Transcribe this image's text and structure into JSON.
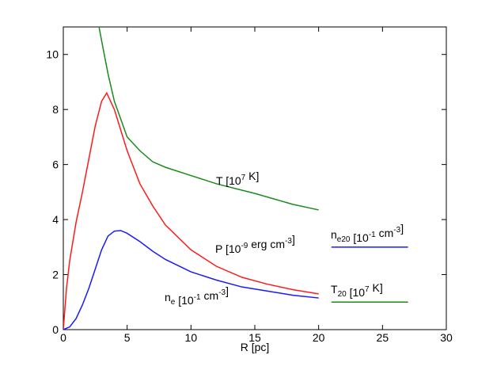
{
  "chart_data": {
    "type": "line",
    "xlabel": "R [pc]",
    "xlim": [
      0,
      30
    ],
    "xticks": [
      0,
      5,
      10,
      15,
      20,
      25,
      30
    ],
    "ylim": [
      0,
      11
    ],
    "yticks": [
      0,
      2,
      4,
      6,
      8,
      10
    ],
    "series": [
      {
        "label": [
          "T [10",
          {
            "sup": "7"
          },
          " K]"
        ],
        "color": "#1a8a1a",
        "x": [
          2.8,
          3,
          3.5,
          4,
          5,
          6,
          7,
          8,
          10,
          12,
          15,
          18,
          20
        ],
        "values": [
          11,
          10.5,
          9.3,
          8.3,
          7.0,
          6.5,
          6.1,
          5.9,
          5.6,
          5.3,
          4.95,
          4.55,
          4.35
        ]
      },
      {
        "label": [
          "P [10",
          {
            "sup": "-9"
          },
          " erg cm",
          {
            "sup": "-3"
          },
          "]"
        ],
        "color": "#ff1a1a",
        "x": [
          0,
          0.25,
          0.5,
          1,
          1.5,
          2,
          2.5,
          3,
          3.4,
          4,
          5,
          6,
          7,
          8,
          10,
          12,
          14,
          16,
          18,
          20
        ],
        "values": [
          0,
          1.5,
          2.5,
          3.9,
          5.0,
          6.2,
          7.4,
          8.3,
          8.6,
          8.0,
          6.5,
          5.3,
          4.5,
          3.8,
          2.9,
          2.3,
          1.9,
          1.65,
          1.45,
          1.3
        ]
      },
      {
        "label": [
          "n",
          {
            "sub": "e"
          },
          " [10",
          {
            "sup": "-1"
          },
          " cm",
          {
            "sup": "-3"
          },
          "]"
        ],
        "color": "#1a1aff",
        "x": [
          0,
          0.5,
          1,
          1.5,
          2,
          2.5,
          3,
          3.5,
          4,
          4.5,
          5,
          6,
          7,
          8,
          10,
          12,
          14,
          16,
          18,
          20
        ],
        "values": [
          0,
          0.1,
          0.4,
          0.9,
          1.5,
          2.2,
          2.9,
          3.4,
          3.58,
          3.6,
          3.5,
          3.2,
          2.85,
          2.55,
          2.1,
          1.8,
          1.55,
          1.4,
          1.25,
          1.15
        ]
      },
      {
        "label": [
          "n",
          {
            "sub": "e20"
          },
          " [10",
          {
            "sup": "-1"
          },
          " cm",
          {
            "sup": "-3"
          },
          "]"
        ],
        "color": "#1a1aff",
        "x": [
          21,
          27
        ],
        "values": [
          3,
          3
        ]
      },
      {
        "label": [
          "T",
          {
            "sub": "20"
          },
          " [10",
          {
            "sup": "7"
          },
          " K]"
        ],
        "color": "#1a8a1a",
        "x": [
          21,
          27
        ],
        "values": [
          1,
          1
        ]
      }
    ]
  }
}
